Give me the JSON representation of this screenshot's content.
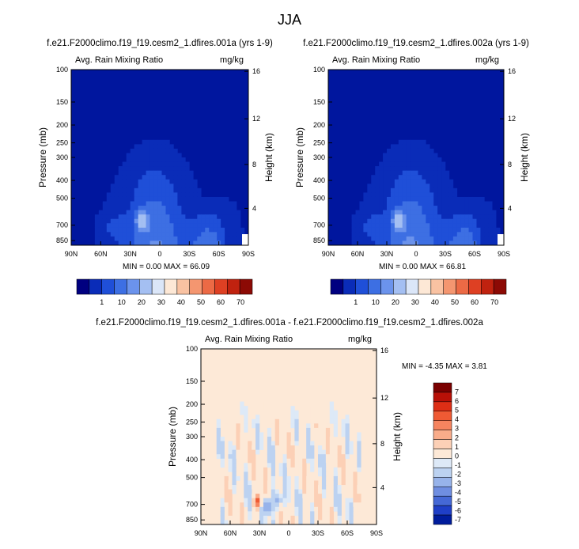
{
  "page_title": "JJA",
  "chart_data": [
    {
      "type": "heatmap",
      "title": "f.e21.F2000climo.f19_f19.cesm2_1.dfires.001a (yrs 1-9)",
      "subtitle_left": "Avg. Rain Mixing Ratio",
      "subtitle_right": "mg/kg",
      "ylabel": "Pressure (mb)",
      "ylabel_right": "Height (km)",
      "x_ticks": [
        "90N",
        "60N",
        "30N",
        "0",
        "30S",
        "60S",
        "90S"
      ],
      "y_ticks": [
        "100",
        "150",
        "200",
        "250",
        "300",
        "400",
        "500",
        "700",
        "850"
      ],
      "y_ticks_right": [
        "16",
        "12",
        "8",
        "4"
      ],
      "stats": "MIN =  0.00  MAX = 66.09",
      "min": 0.0,
      "max": 66.09,
      "colorbar_labels": [
        "1",
        "10",
        "20",
        "30",
        "40",
        "50",
        "60",
        "70"
      ]
    },
    {
      "type": "heatmap",
      "title": "f.e21.F2000climo.f19_f19.cesm2_1.dfires.002a (yrs 1-9)",
      "subtitle_left": "Avg. Rain Mixing Ratio",
      "subtitle_right": "mg/kg",
      "ylabel": "Pressure (mb)",
      "ylabel_right": "Height (km)",
      "x_ticks": [
        "90N",
        "60N",
        "30N",
        "0",
        "30S",
        "60S",
        "90S"
      ],
      "y_ticks": [
        "100",
        "150",
        "200",
        "250",
        "300",
        "400",
        "500",
        "700",
        "850"
      ],
      "y_ticks_right": [
        "16",
        "12",
        "8",
        "4"
      ],
      "stats": "MIN =  0.00  MAX = 66.81",
      "min": 0.0,
      "max": 66.81,
      "colorbar_labels": [
        "1",
        "10",
        "20",
        "30",
        "40",
        "50",
        "60",
        "70"
      ]
    },
    {
      "type": "heatmap",
      "title": "f.e21.F2000climo.f19_f19.cesm2_1.dfires.001a - f.e21.F2000climo.f19_f19.cesm2_1.dfires.002a",
      "subtitle_left": "Avg. Rain Mixing Ratio",
      "subtitle_right": "mg/kg",
      "ylabel": "Pressure (mb)",
      "ylabel_right": "Height (km)",
      "x_ticks": [
        "90N",
        "60N",
        "30N",
        "0",
        "30S",
        "60S",
        "90S"
      ],
      "y_ticks": [
        "100",
        "150",
        "200",
        "250",
        "300",
        "400",
        "500",
        "700",
        "850"
      ],
      "y_ticks_right": [
        "16",
        "12",
        "8",
        "4"
      ],
      "stats": "MIN = -4.35  MAX =  3.81",
      "min": -4.35,
      "max": 3.81,
      "colorbar_labels": [
        "7",
        "6",
        "5",
        "4",
        "3",
        "2",
        "1",
        "0",
        "-1",
        "-2",
        "-3",
        "-4",
        "-5",
        "-6",
        "-7"
      ]
    }
  ],
  "colors": {
    "abs_scale": [
      "#000080",
      "#0a2cb8",
      "#1f4fd8",
      "#3d6fe3",
      "#6b93ec",
      "#a4bff2",
      "#dbe6f8",
      "#fde8d6",
      "#f9c2a2",
      "#f49670",
      "#ec6a45",
      "#de4023",
      "#c0220f",
      "#8c0a05"
    ],
    "abs_background": "#00169e",
    "diff_scale": [
      "#7a0000",
      "#b81007",
      "#dd2e15",
      "#ef5a34",
      "#f6845f",
      "#f9ac8a",
      "#fcd0b6",
      "#fde9d7",
      "#dde9f7",
      "#bcd2f1",
      "#97b3ea",
      "#6f8ee1",
      "#4568d6",
      "#1f3fc7",
      "#001c9c"
    ],
    "diff_background": "#fde9d7"
  }
}
